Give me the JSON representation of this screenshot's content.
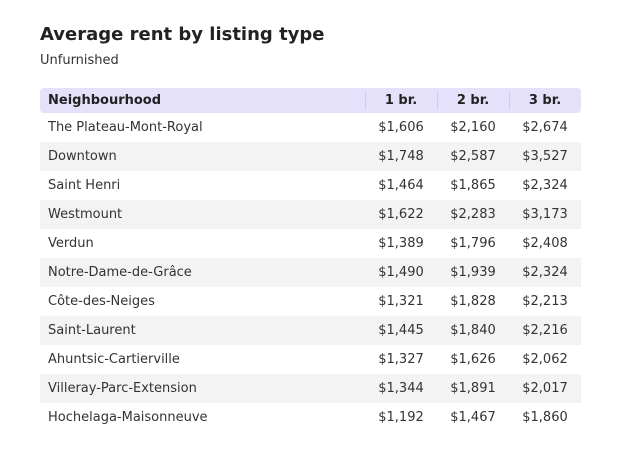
{
  "chart_data": {
    "type": "table",
    "title": "Average rent by listing type",
    "subtitle": "Unfurnished",
    "columns": [
      "Neighbourhood",
      "1 br.",
      "2 br.",
      "3 br."
    ],
    "rows": [
      [
        "The Plateau-Mont-Royal",
        "$1,606",
        "$2,160",
        "$2,674"
      ],
      [
        "Downtown",
        "$1,748",
        "$2,587",
        "$3,527"
      ],
      [
        "Saint Henri",
        "$1,464",
        "$1,865",
        "$2,324"
      ],
      [
        "Westmount",
        "$1,622",
        "$2,283",
        "$3,173"
      ],
      [
        "Verdun",
        "$1,389",
        "$1,796",
        "$2,408"
      ],
      [
        "Notre-Dame-de-Grâce",
        "$1,490",
        "$1,939",
        "$2,324"
      ],
      [
        "Côte-des-Neiges",
        "$1,321",
        "$1,828",
        "$2,213"
      ],
      [
        "Saint-Laurent",
        "$1,445",
        "$1,840",
        "$2,216"
      ],
      [
        "Ahuntsic-Cartierville",
        "$1,327",
        "$1,626",
        "$2,062"
      ],
      [
        "Villeray-Parc-Extension",
        "$1,344",
        "$1,891",
        "$2,017"
      ],
      [
        "Hochelaga-Maisonneuve",
        "$1,192",
        "$1,467",
        "$1,860"
      ]
    ],
    "colors": {
      "header_background": "#e6e1fb",
      "stripe_background": "#f3f3f3"
    }
  }
}
